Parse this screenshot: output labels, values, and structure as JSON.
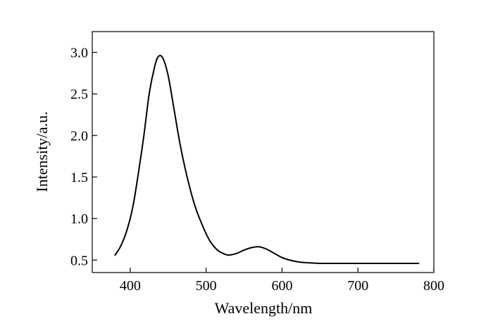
{
  "chart_data": {
    "type": "line",
    "title": "",
    "xlabel": "Wavelength/nm",
    "ylabel": "Intensity/a.u.",
    "xlim": [
      350,
      800
    ],
    "ylim": [
      0.35,
      3.25
    ],
    "xticks": [
      400,
      500,
      600,
      700,
      800
    ],
    "xtick_labels": [
      "400",
      "500",
      "600",
      "700",
      "800"
    ],
    "yticks": [
      0.5,
      1.0,
      1.5,
      2.0,
      2.5,
      3.0
    ],
    "ytick_labels": [
      "0.5",
      "1.0",
      "1.5",
      "2.0",
      "2.5",
      "3.0"
    ],
    "grid": false,
    "legend": "none",
    "line_color": "#000000",
    "series": [
      {
        "x": [
          380,
          387,
          395,
          403,
          410,
          418,
          425,
          432,
          437,
          443,
          450,
          458,
          466,
          475,
          485,
          495,
          505,
          515,
          525,
          530,
          540,
          550,
          560,
          570,
          580,
          590,
          600,
          610,
          620,
          630,
          640,
          650,
          660,
          680,
          700,
          720,
          750,
          780
        ],
        "y": [
          0.56,
          0.66,
          0.84,
          1.12,
          1.5,
          2.0,
          2.5,
          2.82,
          2.95,
          2.93,
          2.72,
          2.3,
          1.88,
          1.5,
          1.16,
          0.92,
          0.73,
          0.62,
          0.57,
          0.56,
          0.58,
          0.62,
          0.65,
          0.66,
          0.63,
          0.58,
          0.53,
          0.5,
          0.48,
          0.47,
          0.465,
          0.46,
          0.46,
          0.46,
          0.46,
          0.46,
          0.46,
          0.46
        ]
      }
    ]
  }
}
